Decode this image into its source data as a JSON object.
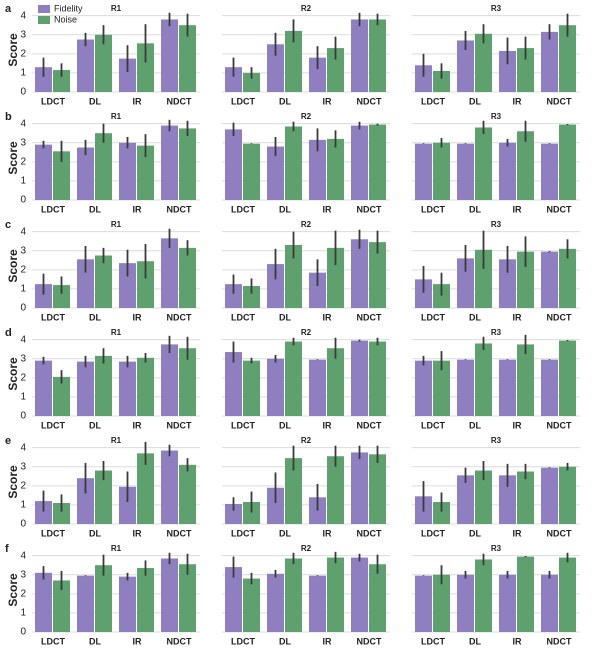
{
  "chart_data": [
    {
      "type": "bar",
      "title": "R1",
      "panel_label": "a",
      "ylabel": "Score",
      "yticklabels": true,
      "legend": "upper left",
      "categories": [
        "LDCT",
        "DL",
        "IR",
        "NDCT"
      ],
      "series": [
        {
          "name": "Fidelity",
          "color": "#8f7fc0",
          "values": [
            1.3,
            2.75,
            1.75,
            3.8
          ],
          "errors": [
            0.5,
            0.35,
            0.7,
            0.35
          ]
        },
        {
          "name": "Noise",
          "color": "#5ea06e",
          "values": [
            1.15,
            3.0,
            2.55,
            3.5
          ],
          "errors": [
            0.35,
            0.5,
            1.0,
            0.6
          ]
        }
      ],
      "ylim": [
        0,
        4.4
      ],
      "yticks": [
        0,
        1,
        2,
        3,
        4
      ],
      "grid": true
    },
    {
      "type": "bar",
      "title": "R2",
      "yticklabels": false,
      "categories": [
        "LDCT",
        "DL",
        "IR",
        "NDCT"
      ],
      "series": [
        {
          "color": "#8f7fc0",
          "values": [
            1.3,
            2.5,
            1.8,
            3.8
          ],
          "errors": [
            0.5,
            0.6,
            0.6,
            0.35
          ]
        },
        {
          "color": "#5ea06e",
          "values": [
            1.0,
            3.2,
            2.3,
            3.8
          ],
          "errors": [
            0.3,
            0.6,
            0.6,
            0.3
          ]
        }
      ],
      "ylim": [
        0,
        4.4
      ],
      "yticks": [
        0,
        1,
        2,
        3,
        4
      ],
      "grid": true
    },
    {
      "type": "bar",
      "title": "R3",
      "yticklabels": false,
      "categories": [
        "LDCT",
        "DL",
        "IR",
        "NDCT"
      ],
      "series": [
        {
          "color": "#8f7fc0",
          "values": [
            1.4,
            2.7,
            2.15,
            3.15
          ],
          "errors": [
            0.6,
            0.5,
            0.7,
            0.4
          ]
        },
        {
          "color": "#5ea06e",
          "values": [
            1.1,
            3.05,
            2.3,
            3.5
          ],
          "errors": [
            0.4,
            0.5,
            0.6,
            0.6
          ]
        }
      ],
      "ylim": [
        0,
        4.4
      ],
      "yticks": [
        0,
        1,
        2,
        3,
        4
      ],
      "grid": true
    },
    {
      "type": "bar",
      "title": "R1",
      "panel_label": "b",
      "ylabel": "Score",
      "yticklabels": true,
      "categories": [
        "LDCT",
        "DL",
        "IR",
        "NDCT"
      ],
      "series": [
        {
          "color": "#8f7fc0",
          "values": [
            2.9,
            2.75,
            3.0,
            3.9
          ],
          "errors": [
            0.2,
            0.4,
            0.3,
            0.3
          ]
        },
        {
          "color": "#5ea06e",
          "values": [
            2.55,
            3.5,
            2.85,
            3.75
          ],
          "errors": [
            0.55,
            0.5,
            0.6,
            0.4
          ]
        }
      ],
      "ylim": [
        0,
        4.4
      ],
      "yticks": [
        0,
        1,
        2,
        3,
        4
      ],
      "grid": true
    },
    {
      "type": "bar",
      "title": "R2",
      "yticklabels": false,
      "categories": [
        "LDCT",
        "DL",
        "IR",
        "NDCT"
      ],
      "series": [
        {
          "color": "#8f7fc0",
          "values": [
            3.7,
            2.8,
            3.15,
            3.9
          ],
          "errors": [
            0.35,
            0.5,
            0.6,
            0.2
          ]
        },
        {
          "color": "#5ea06e",
          "values": [
            2.95,
            3.85,
            3.2,
            3.95
          ],
          "errors": [
            0.02,
            0.25,
            0.45,
            0.05
          ]
        }
      ],
      "ylim": [
        0,
        4.4
      ],
      "yticks": [
        0,
        1,
        2,
        3,
        4
      ],
      "grid": true
    },
    {
      "type": "bar",
      "title": "R3",
      "yticklabels": false,
      "categories": [
        "LDCT",
        "DL",
        "IR",
        "NDCT"
      ],
      "series": [
        {
          "color": "#8f7fc0",
          "values": [
            2.95,
            2.95,
            3.0,
            2.95
          ],
          "errors": [
            0.02,
            0.02,
            0.2,
            0.02
          ]
        },
        {
          "color": "#5ea06e",
          "values": [
            3.0,
            3.8,
            3.6,
            3.95
          ],
          "errors": [
            0.25,
            0.35,
            0.55,
            0.03
          ]
        }
      ],
      "ylim": [
        0,
        4.4
      ],
      "yticks": [
        0,
        1,
        2,
        3,
        4
      ],
      "grid": true
    },
    {
      "type": "bar",
      "title": "R1",
      "panel_label": "c",
      "ylabel": "Score",
      "yticklabels": true,
      "categories": [
        "LDCT",
        "DL",
        "IR",
        "NDCT"
      ],
      "series": [
        {
          "color": "#8f7fc0",
          "values": [
            1.25,
            2.55,
            2.35,
            3.65
          ],
          "errors": [
            0.55,
            0.7,
            0.7,
            0.5
          ]
        },
        {
          "color": "#5ea06e",
          "values": [
            1.2,
            2.75,
            2.45,
            3.15
          ],
          "errors": [
            0.45,
            0.4,
            0.9,
            0.4
          ]
        }
      ],
      "ylim": [
        0,
        4.4
      ],
      "yticks": [
        0,
        1,
        2,
        3,
        4
      ],
      "grid": true
    },
    {
      "type": "bar",
      "title": "R2",
      "yticklabels": false,
      "categories": [
        "LDCT",
        "DL",
        "IR",
        "NDCT"
      ],
      "series": [
        {
          "color": "#8f7fc0",
          "values": [
            1.25,
            2.3,
            1.85,
            3.6
          ],
          "errors": [
            0.5,
            0.8,
            0.7,
            0.5
          ]
        },
        {
          "color": "#5ea06e",
          "values": [
            1.15,
            3.3,
            3.15,
            3.45
          ],
          "errors": [
            0.4,
            0.7,
            0.9,
            0.6
          ]
        }
      ],
      "ylim": [
        0,
        4.4
      ],
      "yticks": [
        0,
        1,
        2,
        3,
        4
      ],
      "grid": true
    },
    {
      "type": "bar",
      "title": "R3",
      "yticklabels": false,
      "categories": [
        "LDCT",
        "DL",
        "IR",
        "NDCT"
      ],
      "series": [
        {
          "color": "#8f7fc0",
          "values": [
            1.5,
            2.6,
            2.55,
            2.95
          ],
          "errors": [
            0.7,
            0.7,
            0.7,
            0.03
          ]
        },
        {
          "color": "#5ea06e",
          "values": [
            1.25,
            3.05,
            2.95,
            3.1
          ],
          "errors": [
            0.6,
            1.0,
            0.8,
            0.5
          ]
        }
      ],
      "ylim": [
        0,
        4.4
      ],
      "yticks": [
        0,
        1,
        2,
        3,
        4
      ],
      "grid": true
    },
    {
      "type": "bar",
      "title": "R1",
      "panel_label": "d",
      "ylabel": "Score",
      "yticklabels": true,
      "categories": [
        "LDCT",
        "DL",
        "IR",
        "NDCT"
      ],
      "series": [
        {
          "color": "#8f7fc0",
          "values": [
            2.9,
            2.85,
            2.85,
            3.75
          ],
          "errors": [
            0.2,
            0.3,
            0.3,
            0.45
          ]
        },
        {
          "color": "#5ea06e",
          "values": [
            2.05,
            3.15,
            3.05,
            3.55
          ],
          "errors": [
            0.35,
            0.4,
            0.25,
            0.6
          ]
        }
      ],
      "ylim": [
        0,
        4.4
      ],
      "yticks": [
        0,
        1,
        2,
        3,
        4
      ],
      "grid": true
    },
    {
      "type": "bar",
      "title": "R2",
      "yticklabels": false,
      "categories": [
        "LDCT",
        "DL",
        "IR",
        "NDCT"
      ],
      "series": [
        {
          "color": "#8f7fc0",
          "values": [
            3.35,
            3.0,
            2.95,
            3.95
          ],
          "errors": [
            0.55,
            0.2,
            0.02,
            0.05
          ]
        },
        {
          "color": "#5ea06e",
          "values": [
            2.9,
            3.9,
            3.55,
            3.9
          ],
          "errors": [
            0.15,
            0.2,
            0.55,
            0.2
          ]
        }
      ],
      "ylim": [
        0,
        4.4
      ],
      "yticks": [
        0,
        1,
        2,
        3,
        4
      ],
      "grid": true
    },
    {
      "type": "bar",
      "title": "R3",
      "yticklabels": false,
      "categories": [
        "LDCT",
        "DL",
        "IR",
        "NDCT"
      ],
      "series": [
        {
          "color": "#8f7fc0",
          "values": [
            2.9,
            2.95,
            2.95,
            2.95
          ],
          "errors": [
            0.25,
            0.02,
            0.02,
            0.02
          ]
        },
        {
          "color": "#5ea06e",
          "values": [
            2.9,
            3.8,
            3.75,
            3.95
          ],
          "errors": [
            0.5,
            0.35,
            0.5,
            0.03
          ]
        }
      ],
      "ylim": [
        0,
        4.4
      ],
      "yticks": [
        0,
        1,
        2,
        3,
        4
      ],
      "grid": true
    },
    {
      "type": "bar",
      "title": "R1",
      "panel_label": "e",
      "ylabel": "Score",
      "yticklabels": true,
      "categories": [
        "LDCT",
        "DL",
        "IR",
        "NDCT"
      ],
      "series": [
        {
          "color": "#8f7fc0",
          "values": [
            1.2,
            2.4,
            1.95,
            3.85
          ],
          "errors": [
            0.55,
            0.8,
            0.8,
            0.3
          ]
        },
        {
          "color": "#5ea06e",
          "values": [
            1.1,
            2.8,
            3.7,
            3.1
          ],
          "errors": [
            0.45,
            0.5,
            0.6,
            0.35
          ]
        }
      ],
      "ylim": [
        0,
        4.4
      ],
      "yticks": [
        0,
        1,
        2,
        3,
        4
      ],
      "grid": true
    },
    {
      "type": "bar",
      "title": "R2",
      "yticklabels": false,
      "categories": [
        "LDCT",
        "DL",
        "IR",
        "NDCT"
      ],
      "series": [
        {
          "color": "#8f7fc0",
          "values": [
            1.05,
            1.9,
            1.4,
            3.75
          ],
          "errors": [
            0.35,
            0.8,
            0.7,
            0.35
          ]
        },
        {
          "color": "#5ea06e",
          "values": [
            1.15,
            3.45,
            3.55,
            3.65
          ],
          "errors": [
            0.55,
            0.65,
            0.55,
            0.45
          ]
        }
      ],
      "ylim": [
        0,
        4.4
      ],
      "yticks": [
        0,
        1,
        2,
        3,
        4
      ],
      "grid": true
    },
    {
      "type": "bar",
      "title": "R3",
      "yticklabels": false,
      "categories": [
        "LDCT",
        "DL",
        "IR",
        "NDCT"
      ],
      "series": [
        {
          "color": "#8f7fc0",
          "values": [
            1.45,
            2.55,
            2.55,
            2.95
          ],
          "errors": [
            0.8,
            0.4,
            0.6,
            0.02
          ]
        },
        {
          "color": "#5ea06e",
          "values": [
            1.15,
            2.8,
            2.75,
            3.0
          ],
          "errors": [
            0.5,
            0.5,
            0.4,
            0.2
          ]
        }
      ],
      "ylim": [
        0,
        4.4
      ],
      "yticks": [
        0,
        1,
        2,
        3,
        4
      ],
      "grid": true
    },
    {
      "type": "bar",
      "title": "R1",
      "panel_label": "f",
      "ylabel": "Score",
      "yticklabels": true,
      "categories": [
        "LDCT",
        "DL",
        "IR",
        "NDCT"
      ],
      "series": [
        {
          "color": "#8f7fc0",
          "values": [
            3.1,
            2.95,
            2.9,
            3.85
          ],
          "errors": [
            0.35,
            0.02,
            0.2,
            0.3
          ]
        },
        {
          "color": "#5ea06e",
          "values": [
            2.7,
            3.5,
            3.35,
            3.55
          ],
          "errors": [
            0.5,
            0.55,
            0.4,
            0.55
          ]
        }
      ],
      "ylim": [
        0,
        4.4
      ],
      "yticks": [
        0,
        1,
        2,
        3,
        4
      ],
      "grid": true
    },
    {
      "type": "bar",
      "title": "R2",
      "yticklabels": false,
      "categories": [
        "LDCT",
        "DL",
        "IR",
        "NDCT"
      ],
      "series": [
        {
          "color": "#8f7fc0",
          "values": [
            3.4,
            3.05,
            2.95,
            3.9
          ],
          "errors": [
            0.55,
            0.2,
            0.02,
            0.2
          ]
        },
        {
          "color": "#5ea06e",
          "values": [
            2.8,
            3.85,
            3.9,
            3.55
          ],
          "errors": [
            0.3,
            0.3,
            0.3,
            0.5
          ]
        }
      ],
      "ylim": [
        0,
        4.4
      ],
      "yticks": [
        0,
        1,
        2,
        3,
        4
      ],
      "grid": true
    },
    {
      "type": "bar",
      "title": "R3",
      "yticklabels": false,
      "categories": [
        "LDCT",
        "DL",
        "IR",
        "NDCT"
      ],
      "series": [
        {
          "color": "#8f7fc0",
          "values": [
            2.95,
            3.0,
            3.0,
            3.0
          ],
          "errors": [
            0.02,
            0.2,
            0.2,
            0.2
          ]
        },
        {
          "color": "#5ea06e",
          "values": [
            3.0,
            3.8,
            3.95,
            3.9
          ],
          "errors": [
            0.5,
            0.3,
            0.03,
            0.25
          ]
        }
      ],
      "ylim": [
        0,
        4.4
      ],
      "yticks": [
        0,
        1,
        2,
        3,
        4
      ],
      "grid": true
    }
  ]
}
